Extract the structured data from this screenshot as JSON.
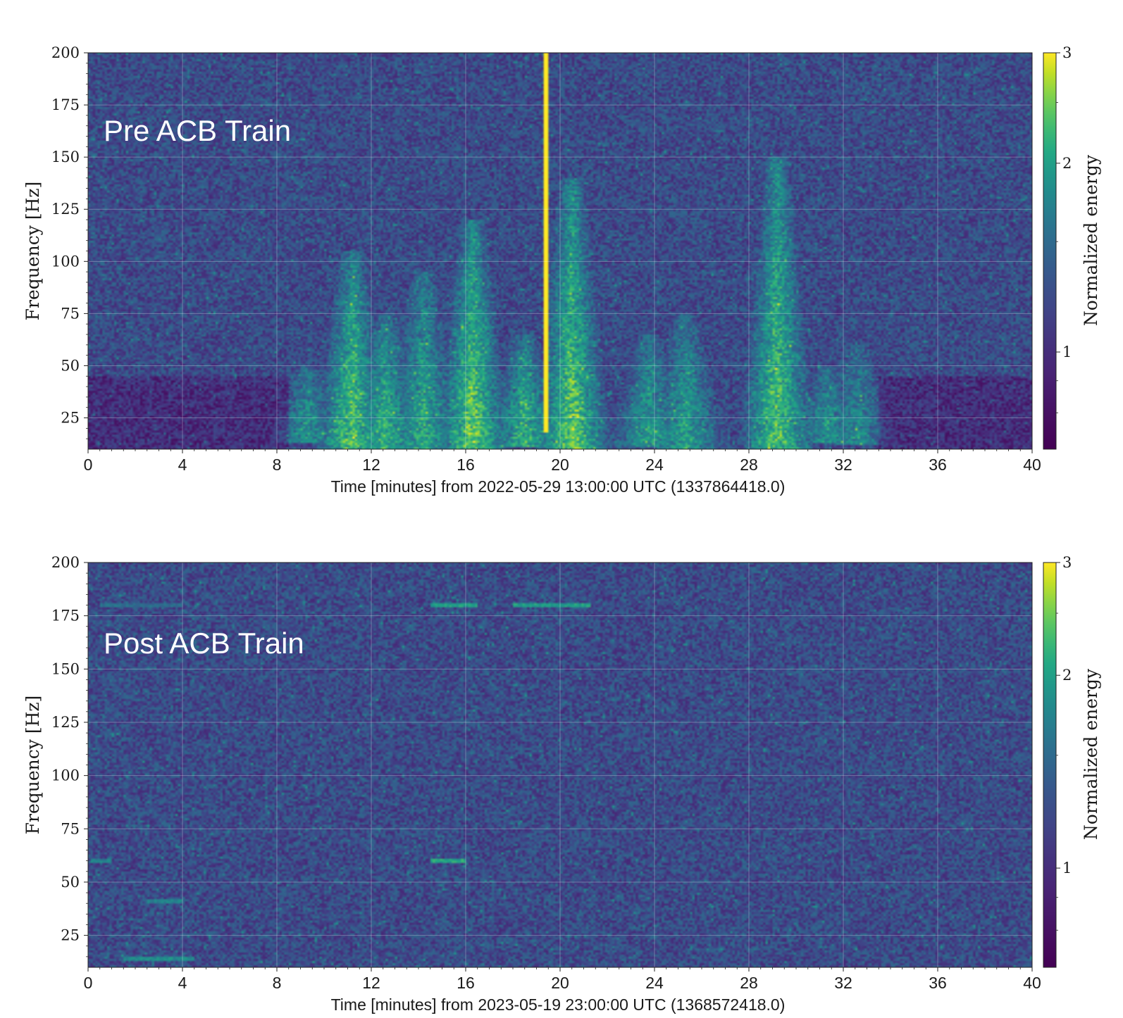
{
  "chart_data": [
    {
      "type": "heatmap",
      "annotation": "Pre ACB Train",
      "xlabel": "Time [minutes] from 2022-05-29 13:00:00 UTC (1337864418.0)",
      "ylabel": "Frequency [Hz]",
      "xlim": [
        0,
        40
      ],
      "ylim": [
        10,
        200
      ],
      "xticks": [
        0,
        4,
        8,
        12,
        16,
        20,
        24,
        28,
        32,
        36,
        40
      ],
      "yticks": [
        25,
        50,
        75,
        100,
        125,
        150,
        175,
        200
      ],
      "grid": true,
      "colormap": "viridis",
      "colorbar": {
        "label": "Normalized energy",
        "ticks": [
          1,
          2,
          3
        ],
        "range": [
          0.7,
          3
        ]
      },
      "features": [
        {
          "kind": "burst",
          "t": 9.3,
          "f_max": 50,
          "intensity": 1.7
        },
        {
          "kind": "burst",
          "t": 11.2,
          "f_max": 105,
          "intensity": 2.2
        },
        {
          "kind": "burst",
          "t": 12.6,
          "f_max": 75,
          "intensity": 2.0
        },
        {
          "kind": "burst",
          "t": 14.2,
          "f_max": 95,
          "intensity": 1.9
        },
        {
          "kind": "burst",
          "t": 16.3,
          "f_max": 120,
          "intensity": 2.3
        },
        {
          "kind": "burst",
          "t": 18.5,
          "f_max": 65,
          "intensity": 2.0
        },
        {
          "kind": "burst",
          "t": 20.5,
          "f_max": 140,
          "intensity": 2.3
        },
        {
          "kind": "burst",
          "t": 23.8,
          "f_max": 65,
          "intensity": 1.8
        },
        {
          "kind": "burst",
          "t": 25.3,
          "f_max": 75,
          "intensity": 1.8
        },
        {
          "kind": "burst",
          "t": 29.2,
          "f_max": 150,
          "intensity": 2.2
        },
        {
          "kind": "burst",
          "t": 31.3,
          "f_max": 50,
          "intensity": 1.7
        },
        {
          "kind": "burst",
          "t": 32.6,
          "f_max": 60,
          "intensity": 1.6
        },
        {
          "kind": "glitch",
          "t": 19.4,
          "f_min": 18,
          "f_max": 200,
          "intensity": 3.0
        },
        {
          "kind": "line",
          "t_start": 0,
          "t_end": 40,
          "f": 14,
          "intensity": 0.8
        }
      ]
    },
    {
      "type": "heatmap",
      "annotation": "Post ACB Train",
      "xlabel": "Time [minutes] from 2023-05-19 23:00:00 UTC (1368572418.0)",
      "ylabel": "Frequency [Hz]",
      "xlim": [
        0,
        40
      ],
      "ylim": [
        10,
        200
      ],
      "xticks": [
        0,
        4,
        8,
        12,
        16,
        20,
        24,
        28,
        32,
        36,
        40
      ],
      "yticks": [
        25,
        50,
        75,
        100,
        125,
        150,
        175,
        200
      ],
      "grid": true,
      "colormap": "viridis",
      "colorbar": {
        "label": "Normalized energy",
        "ticks": [
          1,
          2,
          3
        ],
        "range": [
          0.7,
          3
        ]
      },
      "features": [
        {
          "kind": "line",
          "t_start": 14.5,
          "t_end": 16.5,
          "f": 180,
          "intensity": 2.1
        },
        {
          "kind": "line",
          "t_start": 18.0,
          "t_end": 21.3,
          "f": 180,
          "intensity": 2.1
        },
        {
          "kind": "line",
          "t_start": 14.5,
          "t_end": 16.0,
          "f": 60,
          "intensity": 2.2
        },
        {
          "kind": "line",
          "t_start": 0.1,
          "t_end": 1.0,
          "f": 60,
          "intensity": 1.8
        },
        {
          "kind": "line",
          "t_start": 2.5,
          "t_end": 4.0,
          "f": 41,
          "intensity": 1.8
        },
        {
          "kind": "line",
          "t_start": 1.5,
          "t_end": 4.5,
          "f": 14,
          "intensity": 1.9
        },
        {
          "kind": "line",
          "t_start": 0.5,
          "t_end": 4.0,
          "f": 180,
          "intensity": 1.6
        }
      ]
    }
  ]
}
